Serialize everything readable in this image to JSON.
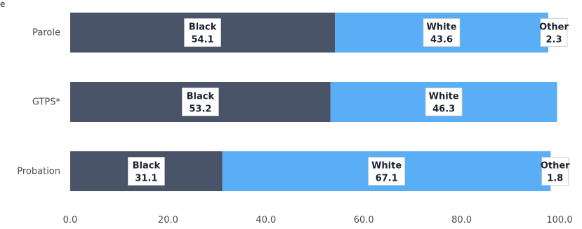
{
  "chart_data": {
    "type": "bar",
    "orientation": "horizontal",
    "stacked": true,
    "categories": [
      "Parole",
      "GTPS*",
      "Probation"
    ],
    "series": [
      {
        "name": "Black",
        "values": [
          54.1,
          53.2,
          31.1
        ],
        "color": "#4a5468"
      },
      {
        "name": "White",
        "values": [
          43.6,
          46.3,
          67.1
        ],
        "color": "#5aaef5"
      },
      {
        "name": "Other",
        "values": [
          2.3,
          null,
          1.8
        ],
        "color": "#ffffff"
      }
    ],
    "x_ticks": [
      "0.0",
      "20.0",
      "40.0",
      "60.0",
      "80.0",
      "100.0"
    ],
    "xlim": [
      0,
      100
    ],
    "grid": false,
    "legend": "none",
    "stray_text": "e"
  }
}
